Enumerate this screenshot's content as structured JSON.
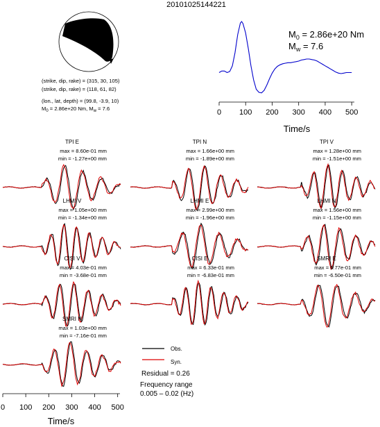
{
  "event_id": "20101025144221",
  "mechanism": {
    "plane1": "(strike, dip, rake) = (315, 30, 105)",
    "plane2": "(strike, dip, rake) = (118, 61, 82)",
    "location": "(lon., lat, depth) = (99.8, -3.9, 10)",
    "m0_label": "M",
    "m0_sub": "0",
    "m0_value": " = 2.86e+20 Nm, M",
    "mw_sub": "w",
    "mw_value": " = 7.6"
  },
  "stf_annotation": {
    "m0_label": "M",
    "m0_sub": "0",
    "m0_value": " = 2.86e+20 Nm",
    "mw_label": "M",
    "mw_sub": "w",
    "mw_value": " = 7.6"
  },
  "legend": {
    "obs": "Obs.",
    "syn": "Syn.",
    "residual": "Residual = 0.26",
    "freq_title": "Frequency range",
    "freq_range": "0.005 – 0.02 (Hz)"
  },
  "colors": {
    "stf_line": "#0000cc",
    "observed": "#000000",
    "synthetic": "#dd0000",
    "beachball_fill": "#000000"
  },
  "chart_data": [
    {
      "type": "line",
      "name": "source-time-function",
      "xlabel": "Time/s",
      "xlim": [
        0,
        510
      ],
      "xticks": [
        0,
        100,
        200,
        300,
        400,
        500
      ],
      "x": [
        0,
        10,
        20,
        30,
        40,
        50,
        60,
        70,
        80,
        85,
        90,
        100,
        110,
        120,
        130,
        140,
        150,
        160,
        170,
        180,
        190,
        200,
        210,
        220,
        230,
        240,
        250,
        260,
        270,
        280,
        290,
        300,
        310,
        320,
        330,
        340,
        350,
        360,
        370,
        380,
        390,
        400,
        410,
        420,
        430,
        440,
        450,
        460,
        470,
        480,
        490,
        500
      ],
      "y": [
        0.02,
        0.05,
        0.05,
        0.02,
        0.04,
        0.15,
        0.4,
        0.75,
        0.97,
        1.0,
        0.96,
        0.78,
        0.48,
        0.15,
        -0.12,
        -0.3,
        -0.36,
        -0.37,
        -0.32,
        -0.22,
        -0.1,
        0.01,
        0.09,
        0.14,
        0.17,
        0.19,
        0.2,
        0.21,
        0.21,
        0.22,
        0.23,
        0.24,
        0.26,
        0.27,
        0.28,
        0.28,
        0.27,
        0.26,
        0.24,
        0.21,
        0.18,
        0.15,
        0.12,
        0.09,
        0.06,
        0.03,
        0.01,
        0.0,
        0.01,
        0.02,
        0.02,
        0.02
      ]
    },
    {
      "type": "line",
      "name": "waveforms",
      "xlabel": "Time/s",
      "xlim": [
        0,
        510
      ],
      "xticks": [
        0,
        100,
        200,
        300,
        400,
        500
      ],
      "series": [
        {
          "name": "Obs."
        },
        {
          "name": "Syn."
        }
      ],
      "panels": [
        {
          "station": "TPI E",
          "max": "max = 8.60e-01 mm",
          "min": "min = -1.27e+00 mm"
        },
        {
          "station": "TPI N",
          "max": "max = 1.66e+00 mm",
          "min": "min = -1.89e+00 mm"
        },
        {
          "station": "TPI V",
          "max": "max = 1.28e+00 mm",
          "min": "min = -1.51e+00 mm"
        },
        {
          "station": "LHMI V",
          "max": "max = 1.05e+00 mm",
          "min": "min = -1.34e+00 mm"
        },
        {
          "station": "LHMI E",
          "max": "max = 2.99e+00 mm",
          "min": "min = -1.96e+00 mm"
        },
        {
          "station": "LHMI N",
          "max": "max = 1.56e+00 mm",
          "min": "min = -1.15e+00 mm"
        },
        {
          "station": "CISI V",
          "max": "max = 4.03e-01 mm",
          "min": "min = -3.68e-01 mm"
        },
        {
          "station": "CISI E",
          "max": "max = 6.33e-01 mm",
          "min": "min = -6.83e-01 mm"
        },
        {
          "station": "SMRI E",
          "max": "max = 6.77e-01 mm",
          "min": "min = -6.50e-01 mm"
        },
        {
          "station": "SMRI N",
          "max": "max = 1.03e+00 mm",
          "min": "min = -7.16e-01 mm"
        }
      ]
    }
  ]
}
